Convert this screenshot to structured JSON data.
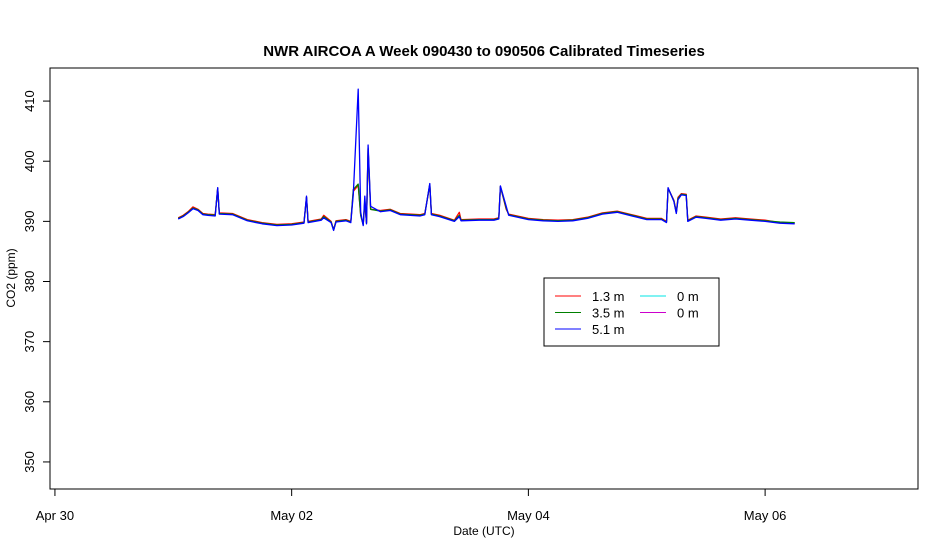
{
  "chart_data": {
    "type": "line",
    "title": "NWR AIRCOA A  Week 090430 to 090506  Calibrated Timeseries",
    "xlabel": "Date (UTC)",
    "ylabel": "CO2 (ppm)",
    "xlim": [
      "2009-04-29T23:00",
      "2009-05-07T07:00"
    ],
    "ylim": [
      345.5,
      415.5
    ],
    "x_ticks": [
      {
        "x": "2009-04-30T00:00",
        "label": "Apr 30"
      },
      {
        "x": "2009-05-02T00:00",
        "label": "May 02"
      },
      {
        "x": "2009-05-04T00:00",
        "label": "May 04"
      },
      {
        "x": "2009-05-06T00:00",
        "label": "May 06"
      }
    ],
    "y_ticks": [
      350,
      360,
      370,
      380,
      390,
      400,
      410
    ],
    "grid": false,
    "legend_position": "center-right",
    "series": [
      {
        "name": "1.3 m",
        "color": "#ff0000",
        "legend_row": 0,
        "legend_col": 0,
        "points": [
          [
            "2009-05-01T01:00",
            390.6
          ],
          [
            "2009-05-01T02:00",
            391.0
          ],
          [
            "2009-05-01T03:00",
            391.6
          ],
          [
            "2009-05-01T04:00",
            392.4
          ],
          [
            "2009-05-01T05:00",
            392.0
          ],
          [
            "2009-05-01T06:00",
            391.3
          ],
          [
            "2009-05-01T07:00",
            391.2
          ],
          [
            "2009-05-01T08:30",
            391.1
          ],
          [
            "2009-05-01T09:00",
            395.5
          ],
          [
            "2009-05-01T09:20",
            391.4
          ],
          [
            "2009-05-01T12:00",
            391.3
          ],
          [
            "2009-05-01T15:00",
            390.3
          ],
          [
            "2009-05-01T18:00",
            389.8
          ],
          [
            "2009-05-01T21:00",
            389.5
          ],
          [
            "2009-05-02T00:00",
            389.6
          ],
          [
            "2009-05-02T02:30",
            389.9
          ],
          [
            "2009-05-02T03:00",
            394.0
          ],
          [
            "2009-05-02T03:20",
            390.0
          ],
          [
            "2009-05-02T06:00",
            390.4
          ],
          [
            "2009-05-02T06:30",
            391.0
          ],
          [
            "2009-05-02T08:00",
            390.0
          ],
          [
            "2009-05-02T08:30",
            388.6
          ],
          [
            "2009-05-02T09:00",
            390.1
          ],
          [
            "2009-05-02T11:00",
            390.3
          ],
          [
            "2009-05-02T12:00",
            390.0
          ],
          [
            "2009-05-02T12:30",
            395.0
          ],
          [
            "2009-05-02T13:30",
            396.0
          ],
          [
            "2009-05-02T14:00",
            391.0
          ],
          [
            "2009-05-02T14:30",
            389.5
          ],
          [
            "2009-05-02T14:50",
            393.0
          ],
          [
            "2009-05-02T15:10",
            389.8
          ],
          [
            "2009-05-02T15:30",
            402.0
          ],
          [
            "2009-05-02T16:00",
            392.0
          ],
          [
            "2009-05-02T18:00",
            391.8
          ],
          [
            "2009-05-02T20:00",
            392.0
          ],
          [
            "2009-05-02T22:00",
            391.3
          ],
          [
            "2009-05-03T02:00",
            391.1
          ],
          [
            "2009-05-03T03:00",
            391.3
          ],
          [
            "2009-05-03T04:00",
            396.0
          ],
          [
            "2009-05-03T04:20",
            391.3
          ],
          [
            "2009-05-03T06:00",
            391.0
          ],
          [
            "2009-05-03T09:00",
            390.2
          ],
          [
            "2009-05-03T10:00",
            391.5
          ],
          [
            "2009-05-03T10:20",
            390.3
          ],
          [
            "2009-05-03T14:00",
            390.4
          ],
          [
            "2009-05-03T17:00",
            390.4
          ],
          [
            "2009-05-03T18:00",
            390.6
          ],
          [
            "2009-05-03T18:20",
            395.8
          ],
          [
            "2009-05-03T19:30",
            392.0
          ],
          [
            "2009-05-03T20:00",
            391.2
          ],
          [
            "2009-05-04T00:00",
            390.5
          ],
          [
            "2009-05-04T03:00",
            390.3
          ],
          [
            "2009-05-04T06:00",
            390.2
          ],
          [
            "2009-05-04T09:00",
            390.3
          ],
          [
            "2009-05-04T12:00",
            390.7
          ],
          [
            "2009-05-04T15:00",
            391.4
          ],
          [
            "2009-05-04T18:00",
            391.7
          ],
          [
            "2009-05-04T21:00",
            391.1
          ],
          [
            "2009-05-05T00:00",
            390.5
          ],
          [
            "2009-05-05T03:00",
            390.5
          ],
          [
            "2009-05-05T04:00",
            390.0
          ],
          [
            "2009-05-05T04:20",
            395.5
          ],
          [
            "2009-05-05T05:30",
            393.5
          ],
          [
            "2009-05-05T06:00",
            391.5
          ],
          [
            "2009-05-05T06:20",
            394.0
          ],
          [
            "2009-05-05T07:00",
            394.6
          ],
          [
            "2009-05-05T08:00",
            394.5
          ],
          [
            "2009-05-05T08:20",
            390.2
          ],
          [
            "2009-05-05T10:00",
            390.9
          ],
          [
            "2009-05-05T12:00",
            390.7
          ],
          [
            "2009-05-05T15:00",
            390.4
          ],
          [
            "2009-05-05T18:00",
            390.6
          ],
          [
            "2009-05-05T21:00",
            390.4
          ],
          [
            "2009-05-06T00:00",
            390.2
          ],
          [
            "2009-05-06T03:00",
            389.8
          ],
          [
            "2009-05-06T06:00",
            389.7
          ]
        ]
      },
      {
        "name": "3.5 m",
        "color": "#008000",
        "legend_row": 1,
        "legend_col": 0,
        "points": [
          [
            "2009-05-01T01:00",
            390.5
          ],
          [
            "2009-05-01T02:00",
            390.9
          ],
          [
            "2009-05-01T03:00",
            391.5
          ],
          [
            "2009-05-01T04:00",
            392.2
          ],
          [
            "2009-05-01T05:00",
            391.9
          ],
          [
            "2009-05-01T06:00",
            391.2
          ],
          [
            "2009-05-01T07:00",
            391.1
          ],
          [
            "2009-05-01T08:30",
            391.0
          ],
          [
            "2009-05-01T09:00",
            395.5
          ],
          [
            "2009-05-01T09:20",
            391.3
          ],
          [
            "2009-05-01T12:00",
            391.2
          ],
          [
            "2009-05-01T15:00",
            390.2
          ],
          [
            "2009-05-01T18:00",
            389.7
          ],
          [
            "2009-05-01T21:00",
            389.4
          ],
          [
            "2009-05-02T00:00",
            389.5
          ],
          [
            "2009-05-02T02:30",
            389.8
          ],
          [
            "2009-05-02T03:00",
            394.0
          ],
          [
            "2009-05-02T03:20",
            389.9
          ],
          [
            "2009-05-02T06:00",
            390.3
          ],
          [
            "2009-05-02T06:30",
            390.8
          ],
          [
            "2009-05-02T08:00",
            389.9
          ],
          [
            "2009-05-02T08:30",
            388.6
          ],
          [
            "2009-05-02T09:00",
            390.0
          ],
          [
            "2009-05-02T11:00",
            390.2
          ],
          [
            "2009-05-02T12:00",
            389.9
          ],
          [
            "2009-05-02T12:30",
            395.3
          ],
          [
            "2009-05-02T13:30",
            396.2
          ],
          [
            "2009-05-02T14:00",
            391.0
          ],
          [
            "2009-05-02T14:30",
            389.4
          ],
          [
            "2009-05-02T14:50",
            393.5
          ],
          [
            "2009-05-02T15:10",
            389.7
          ],
          [
            "2009-05-02T15:30",
            402.2
          ],
          [
            "2009-05-02T16:00",
            392.0
          ],
          [
            "2009-05-02T18:00",
            391.7
          ],
          [
            "2009-05-02T20:00",
            391.9
          ],
          [
            "2009-05-02T22:00",
            391.2
          ],
          [
            "2009-05-03T02:00",
            391.0
          ],
          [
            "2009-05-03T03:00",
            391.2
          ],
          [
            "2009-05-03T04:00",
            396.2
          ],
          [
            "2009-05-03T04:20",
            391.2
          ],
          [
            "2009-05-03T06:00",
            390.9
          ],
          [
            "2009-05-03T09:00",
            390.1
          ],
          [
            "2009-05-03T10:00",
            391.0
          ],
          [
            "2009-05-03T10:20",
            390.2
          ],
          [
            "2009-05-03T14:00",
            390.3
          ],
          [
            "2009-05-03T17:00",
            390.3
          ],
          [
            "2009-05-03T18:00",
            390.5
          ],
          [
            "2009-05-03T18:20",
            395.8
          ],
          [
            "2009-05-03T19:30",
            392.2
          ],
          [
            "2009-05-03T20:00",
            391.1
          ],
          [
            "2009-05-04T00:00",
            390.4
          ],
          [
            "2009-05-04T03:00",
            390.2
          ],
          [
            "2009-05-04T06:00",
            390.1
          ],
          [
            "2009-05-04T09:00",
            390.2
          ],
          [
            "2009-05-04T12:00",
            390.6
          ],
          [
            "2009-05-04T15:00",
            391.3
          ],
          [
            "2009-05-04T18:00",
            391.6
          ],
          [
            "2009-05-04T21:00",
            391.0
          ],
          [
            "2009-05-05T00:00",
            390.4
          ],
          [
            "2009-05-05T03:00",
            390.4
          ],
          [
            "2009-05-05T04:00",
            389.9
          ],
          [
            "2009-05-05T04:20",
            395.5
          ],
          [
            "2009-05-05T05:30",
            393.4
          ],
          [
            "2009-05-05T06:00",
            391.4
          ],
          [
            "2009-05-05T06:20",
            393.8
          ],
          [
            "2009-05-05T07:00",
            394.5
          ],
          [
            "2009-05-05T08:00",
            394.4
          ],
          [
            "2009-05-05T08:20",
            390.1
          ],
          [
            "2009-05-05T10:00",
            390.8
          ],
          [
            "2009-05-05T12:00",
            390.6
          ],
          [
            "2009-05-05T15:00",
            390.3
          ],
          [
            "2009-05-05T18:00",
            390.5
          ],
          [
            "2009-05-05T21:00",
            390.3
          ],
          [
            "2009-05-06T00:00",
            390.1
          ],
          [
            "2009-05-06T03:00",
            389.9
          ],
          [
            "2009-05-06T06:00",
            389.8
          ]
        ]
      },
      {
        "name": "5.1 m",
        "color": "#0000ff",
        "legend_row": 2,
        "legend_col": 0,
        "points": [
          [
            "2009-05-01T01:00",
            390.4
          ],
          [
            "2009-05-01T02:00",
            390.8
          ],
          [
            "2009-05-01T03:00",
            391.4
          ],
          [
            "2009-05-01T04:00",
            392.1
          ],
          [
            "2009-05-01T05:00",
            391.8
          ],
          [
            "2009-05-01T06:00",
            391.1
          ],
          [
            "2009-05-01T07:00",
            391.0
          ],
          [
            "2009-05-01T08:30",
            390.9
          ],
          [
            "2009-05-01T09:00",
            395.6
          ],
          [
            "2009-05-01T09:20",
            391.2
          ],
          [
            "2009-05-01T12:00",
            391.1
          ],
          [
            "2009-05-01T15:00",
            390.1
          ],
          [
            "2009-05-01T18:00",
            389.6
          ],
          [
            "2009-05-01T21:00",
            389.3
          ],
          [
            "2009-05-02T00:00",
            389.4
          ],
          [
            "2009-05-02T02:30",
            389.7
          ],
          [
            "2009-05-02T03:00",
            394.2
          ],
          [
            "2009-05-02T03:20",
            389.8
          ],
          [
            "2009-05-02T06:00",
            390.2
          ],
          [
            "2009-05-02T06:30",
            390.6
          ],
          [
            "2009-05-02T08:00",
            389.8
          ],
          [
            "2009-05-02T08:30",
            388.5
          ],
          [
            "2009-05-02T09:00",
            389.9
          ],
          [
            "2009-05-02T11:00",
            390.1
          ],
          [
            "2009-05-02T12:00",
            389.8
          ],
          [
            "2009-05-02T12:30",
            394.5
          ],
          [
            "2009-05-02T13:30",
            412.0
          ],
          [
            "2009-05-02T14:00",
            391.5
          ],
          [
            "2009-05-02T14:30",
            389.3
          ],
          [
            "2009-05-02T14:50",
            394.2
          ],
          [
            "2009-05-02T15:10",
            389.6
          ],
          [
            "2009-05-02T15:30",
            402.7
          ],
          [
            "2009-05-02T16:00",
            392.5
          ],
          [
            "2009-05-02T18:00",
            391.6
          ],
          [
            "2009-05-02T20:00",
            391.8
          ],
          [
            "2009-05-02T22:00",
            391.1
          ],
          [
            "2009-05-03T02:00",
            390.9
          ],
          [
            "2009-05-03T03:00",
            391.1
          ],
          [
            "2009-05-03T04:00",
            396.3
          ],
          [
            "2009-05-03T04:20",
            391.1
          ],
          [
            "2009-05-03T06:00",
            390.8
          ],
          [
            "2009-05-03T09:00",
            390.0
          ],
          [
            "2009-05-03T10:00",
            390.8
          ],
          [
            "2009-05-03T10:20",
            390.1
          ],
          [
            "2009-05-03T14:00",
            390.2
          ],
          [
            "2009-05-03T17:00",
            390.2
          ],
          [
            "2009-05-03T18:00",
            390.4
          ],
          [
            "2009-05-03T18:20",
            395.9
          ],
          [
            "2009-05-03T19:30",
            392.5
          ],
          [
            "2009-05-03T20:00",
            391.0
          ],
          [
            "2009-05-04T00:00",
            390.3
          ],
          [
            "2009-05-04T03:00",
            390.1
          ],
          [
            "2009-05-04T06:00",
            390.0
          ],
          [
            "2009-05-04T09:00",
            390.1
          ],
          [
            "2009-05-04T12:00",
            390.5
          ],
          [
            "2009-05-04T15:00",
            391.2
          ],
          [
            "2009-05-04T18:00",
            391.5
          ],
          [
            "2009-05-04T21:00",
            390.9
          ],
          [
            "2009-05-05T00:00",
            390.3
          ],
          [
            "2009-05-05T03:00",
            390.3
          ],
          [
            "2009-05-05T04:00",
            389.8
          ],
          [
            "2009-05-05T04:20",
            395.6
          ],
          [
            "2009-05-05T05:30",
            393.3
          ],
          [
            "2009-05-05T06:00",
            391.3
          ],
          [
            "2009-05-05T06:20",
            393.6
          ],
          [
            "2009-05-05T07:00",
            394.4
          ],
          [
            "2009-05-05T08:00",
            394.3
          ],
          [
            "2009-05-05T08:20",
            390.0
          ],
          [
            "2009-05-05T10:00",
            390.7
          ],
          [
            "2009-05-05T12:00",
            390.5
          ],
          [
            "2009-05-05T15:00",
            390.2
          ],
          [
            "2009-05-05T18:00",
            390.4
          ],
          [
            "2009-05-05T21:00",
            390.2
          ],
          [
            "2009-05-06T00:00",
            390.0
          ],
          [
            "2009-05-06T03:00",
            389.7
          ],
          [
            "2009-05-06T06:00",
            389.6
          ]
        ]
      },
      {
        "name": "0 m",
        "color": "#00e5e5",
        "legend_row": 0,
        "legend_col": 1,
        "points": []
      },
      {
        "name": "0 m",
        "color": "#cc00cc",
        "legend_row": 1,
        "legend_col": 1,
        "points": []
      }
    ]
  }
}
